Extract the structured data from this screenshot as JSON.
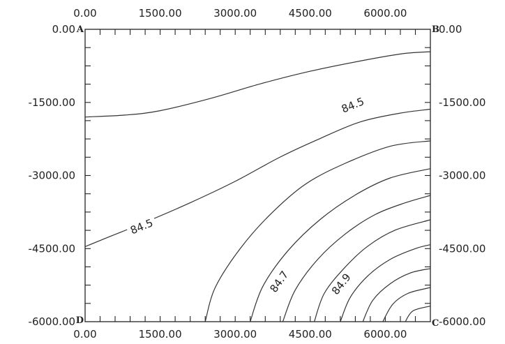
{
  "chart_data": {
    "type": "contour",
    "title": "",
    "xlabel": "",
    "ylabel": "",
    "xlim": [
      0,
      6900
    ],
    "ylim": [
      -6000,
      0
    ],
    "x_tick_values": [
      0,
      1500,
      3000,
      4500,
      6000
    ],
    "y_tick_values": [
      0,
      -1500,
      -3000,
      -4500,
      -6000
    ],
    "x_tick_labels": [
      "0.00",
      "1500.00",
      "3000.00",
      "4500.00",
      "6000.00"
    ],
    "y_tick_labels": [
      "0.00",
      "-1500.00",
      "-3000.00",
      "-4500.00",
      "-6000.00"
    ],
    "corner_labels": {
      "top_left": "A",
      "top_right": "B",
      "bottom_right": "C",
      "bottom_left": "D"
    },
    "contour_labels": [
      {
        "text": "84.5",
        "x": 5350,
        "y": -1560
      },
      {
        "text": "84.5",
        "x": 1130,
        "y": -4050
      },
      {
        "text": "84.7",
        "x": 3880,
        "y": -5180
      },
      {
        "text": "84.9",
        "x": 5120,
        "y": -5230
      }
    ],
    "contours": [
      {
        "points": [
          [
            0,
            -1800
          ],
          [
            800,
            -1760
          ],
          [
            1500,
            -1670
          ],
          [
            2500,
            -1420
          ],
          [
            3500,
            -1120
          ],
          [
            4500,
            -860
          ],
          [
            5500,
            -650
          ],
          [
            6350,
            -500
          ],
          [
            6900,
            -460
          ]
        ]
      },
      {
        "level": "84.5",
        "points": [
          [
            0,
            -4460
          ],
          [
            500,
            -4250
          ],
          [
            1200,
            -3960
          ],
          [
            2100,
            -3560
          ],
          [
            3000,
            -3120
          ],
          [
            3900,
            -2620
          ],
          [
            4700,
            -2240
          ],
          [
            5500,
            -1900
          ],
          [
            6300,
            -1720
          ],
          [
            6900,
            -1640
          ]
        ]
      },
      {
        "points": [
          [
            2400,
            -6000
          ],
          [
            2600,
            -5300
          ],
          [
            3100,
            -4500
          ],
          [
            3700,
            -3800
          ],
          [
            4400,
            -3180
          ],
          [
            5200,
            -2750
          ],
          [
            6100,
            -2400
          ],
          [
            6900,
            -2290
          ]
        ]
      },
      {
        "level": "84.7",
        "points": [
          [
            3300,
            -6000
          ],
          [
            3550,
            -5280
          ],
          [
            4050,
            -4550
          ],
          [
            4700,
            -3900
          ],
          [
            5400,
            -3400
          ],
          [
            6100,
            -3050
          ],
          [
            6900,
            -2860
          ]
        ]
      },
      {
        "points": [
          [
            3950,
            -6000
          ],
          [
            4200,
            -5350
          ],
          [
            4650,
            -4720
          ],
          [
            5200,
            -4200
          ],
          [
            5800,
            -3800
          ],
          [
            6400,
            -3560
          ],
          [
            6900,
            -3410
          ]
        ]
      },
      {
        "level": "84.9",
        "points": [
          [
            4580,
            -6000
          ],
          [
            4780,
            -5420
          ],
          [
            5180,
            -4900
          ],
          [
            5650,
            -4450
          ],
          [
            6200,
            -4120
          ],
          [
            6900,
            -3910
          ]
        ]
      },
      {
        "points": [
          [
            5100,
            -6000
          ],
          [
            5300,
            -5500
          ],
          [
            5650,
            -5060
          ],
          [
            6100,
            -4720
          ],
          [
            6600,
            -4500
          ],
          [
            6900,
            -4420
          ]
        ]
      },
      {
        "points": [
          [
            5550,
            -6000
          ],
          [
            5750,
            -5560
          ],
          [
            6100,
            -5220
          ],
          [
            6500,
            -5000
          ],
          [
            6900,
            -4910
          ]
        ]
      },
      {
        "points": [
          [
            5950,
            -6000
          ],
          [
            6150,
            -5640
          ],
          [
            6450,
            -5420
          ],
          [
            6900,
            -5300
          ]
        ]
      },
      {
        "points": [
          [
            6400,
            -6000
          ],
          [
            6550,
            -5780
          ],
          [
            6900,
            -5680
          ]
        ]
      }
    ]
  }
}
